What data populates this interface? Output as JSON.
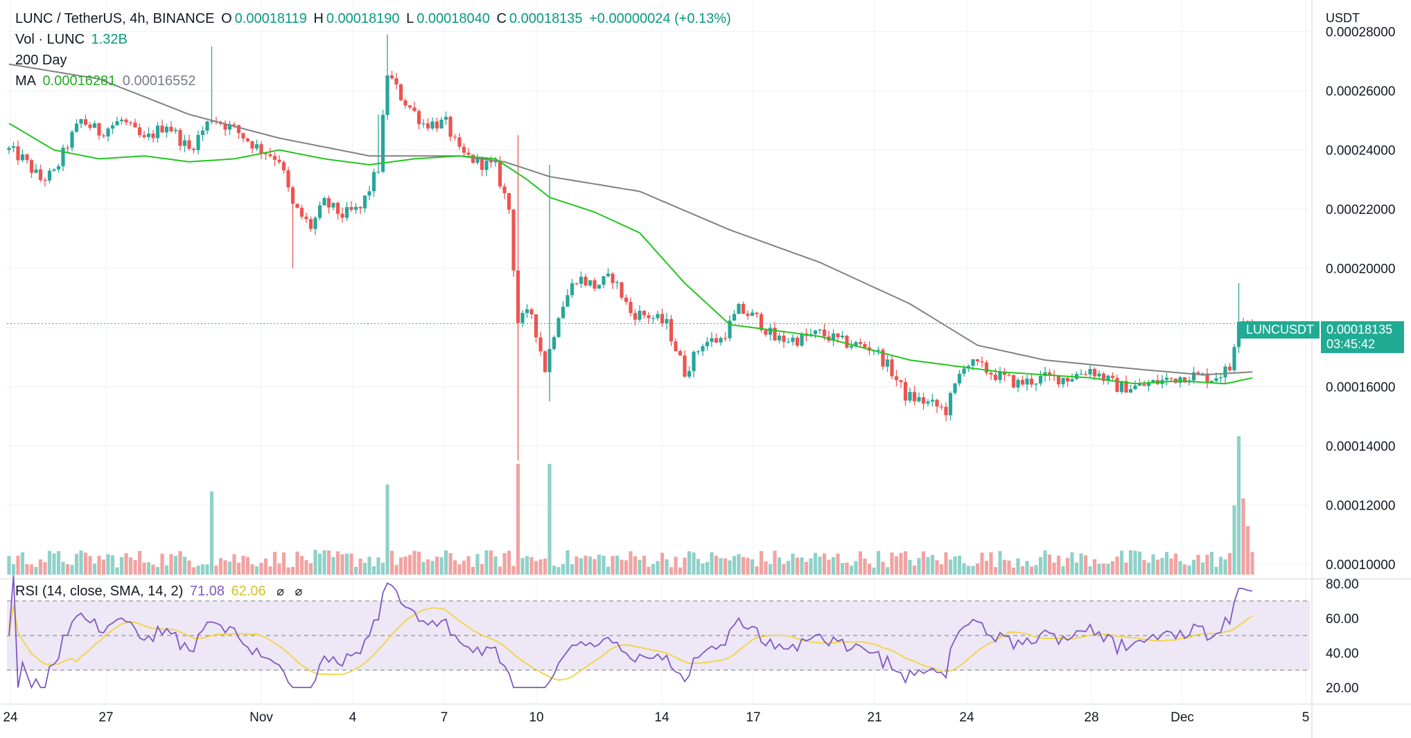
{
  "header": {
    "pair": "LUNC / TetherUS, 4h, BINANCE",
    "o_label": "O",
    "o_value": "0.00018119",
    "h_label": "H",
    "h_value": "0.00018190",
    "l_label": "L",
    "l_value": "0.00018040",
    "c_label": "C",
    "c_value": "0.00018135",
    "change": "+0.00000024 (+0.13%)",
    "vol_label": "Vol · LUNC",
    "vol_value": "1.32B",
    "ma_name": "200 Day",
    "ma_label": "MA",
    "ma_value1": "0.00016281",
    "ma_value2": "0.00016552"
  },
  "rsi_legend": {
    "label": "RSI (14, close, SMA, 14, 2)",
    "value1": "71.08",
    "value2": "62.06"
  },
  "price_tag": {
    "symbol": "LUNCUSDT",
    "price": "0.00018135",
    "countdown": "03:45:42"
  },
  "colors": {
    "up": "#26a69a",
    "down": "#ef5350",
    "vol_up": "#8fd1c9",
    "vol_down": "#f1a3a2",
    "ma_fast": "#22c51e",
    "ma_slow": "#808080",
    "rsi": "#7e57c2",
    "rsi_ma": "#f2d43d",
    "rsi_band": "#ede7f6"
  },
  "chart_data": {
    "type": "candlestick",
    "unit": "USDT",
    "y_ticks": [
      "0.00028000",
      "0.00026000",
      "0.00024000",
      "0.00022000",
      "0.00020000",
      "0.00018000",
      "0.00016000",
      "0.00014000",
      "0.00012000",
      "0.00010000"
    ],
    "ylim": [
      9.65e-05,
      0.000286
    ],
    "x_tick_labels": [
      "24",
      "27",
      "Nov",
      "4",
      "7",
      "10",
      "14",
      "17",
      "21",
      "24",
      "28",
      "Dec",
      "5"
    ],
    "rsi_ticks": [
      "80.00",
      "60.00",
      "40.00",
      "20.00"
    ],
    "rsi_levels": [
      70,
      50,
      30
    ],
    "last_price": 0.00018135,
    "anchors": [
      [
        0,
        0.00024
      ],
      [
        3,
        0.000237
      ],
      [
        7,
        0.00023
      ],
      [
        10,
        0.000232
      ],
      [
        13,
        0.000242
      ],
      [
        16,
        0.00025
      ],
      [
        20,
        0.000246
      ],
      [
        25,
        0.00025
      ],
      [
        30,
        0.000243
      ],
      [
        35,
        0.000249
      ],
      [
        40,
        0.00024
      ],
      [
        45,
        0.000251
      ],
      [
        50,
        0.000247
      ],
      [
        55,
        0.000241
      ],
      [
        60,
        0.000237
      ],
      [
        63,
        0.000221
      ],
      [
        67,
        0.000214
      ],
      [
        70,
        0.000222
      ],
      [
        74,
        0.000218
      ],
      [
        78,
        0.00022
      ],
      [
        82,
        0.000234
      ],
      [
        84,
        0.000266
      ],
      [
        87,
        0.000258
      ],
      [
        92,
        0.000249
      ],
      [
        97,
        0.000249
      ],
      [
        100,
        0.000239
      ],
      [
        104,
        0.000236
      ],
      [
        108,
        0.000234
      ],
      [
        111,
        0.00022
      ],
      [
        113,
        0.000182
      ],
      [
        116,
        0.000185
      ],
      [
        119,
        0.000166
      ],
      [
        122,
        0.000185
      ],
      [
        126,
        0.000197
      ],
      [
        130,
        0.000194
      ],
      [
        134,
        0.000197
      ],
      [
        138,
        0.000185
      ],
      [
        142,
        0.000184
      ],
      [
        146,
        0.000181
      ],
      [
        150,
        0.000165
      ],
      [
        154,
        0.000175
      ],
      [
        158,
        0.000176
      ],
      [
        162,
        0.000186
      ],
      [
        166,
        0.000183
      ],
      [
        170,
        0.000176
      ],
      [
        175,
        0.000176
      ],
      [
        180,
        0.000178
      ],
      [
        185,
        0.000175
      ],
      [
        192,
        0.000173
      ],
      [
        196,
        0.000165
      ],
      [
        199,
        0.000157
      ],
      [
        203,
        0.000155
      ],
      [
        208,
        0.000152
      ],
      [
        212,
        0.000168
      ],
      [
        215,
        0.000167
      ],
      [
        219,
        0.000164
      ],
      [
        224,
        0.000161
      ],
      [
        230,
        0.000163
      ],
      [
        235,
        0.000163
      ],
      [
        240,
        0.000166
      ],
      [
        246,
        0.00016
      ],
      [
        251,
        0.00016
      ],
      [
        256,
        0.000162
      ],
      [
        262,
        0.000164
      ],
      [
        267,
        0.000163
      ],
      [
        271,
        0.000166
      ],
      [
        273,
        0.000184
      ],
      [
        276,
        0.000181
      ]
    ],
    "ma_fast_anchors": [
      [
        0,
        0.000249
      ],
      [
        10,
        0.00024
      ],
      [
        20,
        0.000237
      ],
      [
        30,
        0.000238
      ],
      [
        40,
        0.000236
      ],
      [
        50,
        0.000237
      ],
      [
        60,
        0.00024
      ],
      [
        70,
        0.000237
      ],
      [
        80,
        0.000235
      ],
      [
        90,
        0.000237
      ],
      [
        100,
        0.000238
      ],
      [
        108,
        0.000237
      ],
      [
        115,
        0.00023
      ],
      [
        120,
        0.000224
      ],
      [
        130,
        0.000219
      ],
      [
        140,
        0.000212
      ],
      [
        150,
        0.000195
      ],
      [
        160,
        0.000181
      ],
      [
        170,
        0.000179
      ],
      [
        180,
        0.000177
      ],
      [
        190,
        0.000173
      ],
      [
        200,
        0.000169
      ],
      [
        210,
        0.000167
      ],
      [
        220,
        0.000165
      ],
      [
        230,
        0.000164
      ],
      [
        240,
        0.000163
      ],
      [
        250,
        0.000161
      ],
      [
        260,
        0.000162
      ],
      [
        270,
        0.000161
      ],
      [
        276,
        0.000163
      ]
    ],
    "ma_slow_anchors": [
      [
        0,
        0.000269
      ],
      [
        20,
        0.000264
      ],
      [
        40,
        0.000252
      ],
      [
        60,
        0.000244
      ],
      [
        80,
        0.000238
      ],
      [
        100,
        0.000238
      ],
      [
        110,
        0.000236
      ],
      [
        120,
        0.000231
      ],
      [
        140,
        0.000226
      ],
      [
        160,
        0.000213
      ],
      [
        180,
        0.000202
      ],
      [
        200,
        0.000188
      ],
      [
        215,
        0.000174
      ],
      [
        230,
        0.000169
      ],
      [
        250,
        0.000166
      ],
      [
        265,
        0.000164
      ],
      [
        276,
        0.000165
      ]
    ],
    "volume_spikes": [
      [
        45,
        0.6
      ],
      [
        84,
        0.65
      ],
      [
        113,
        0.8
      ],
      [
        120,
        0.8
      ],
      [
        272,
        0.5
      ],
      [
        273,
        1.0
      ],
      [
        274,
        0.55
      ],
      [
        275,
        0.35
      ]
    ]
  }
}
